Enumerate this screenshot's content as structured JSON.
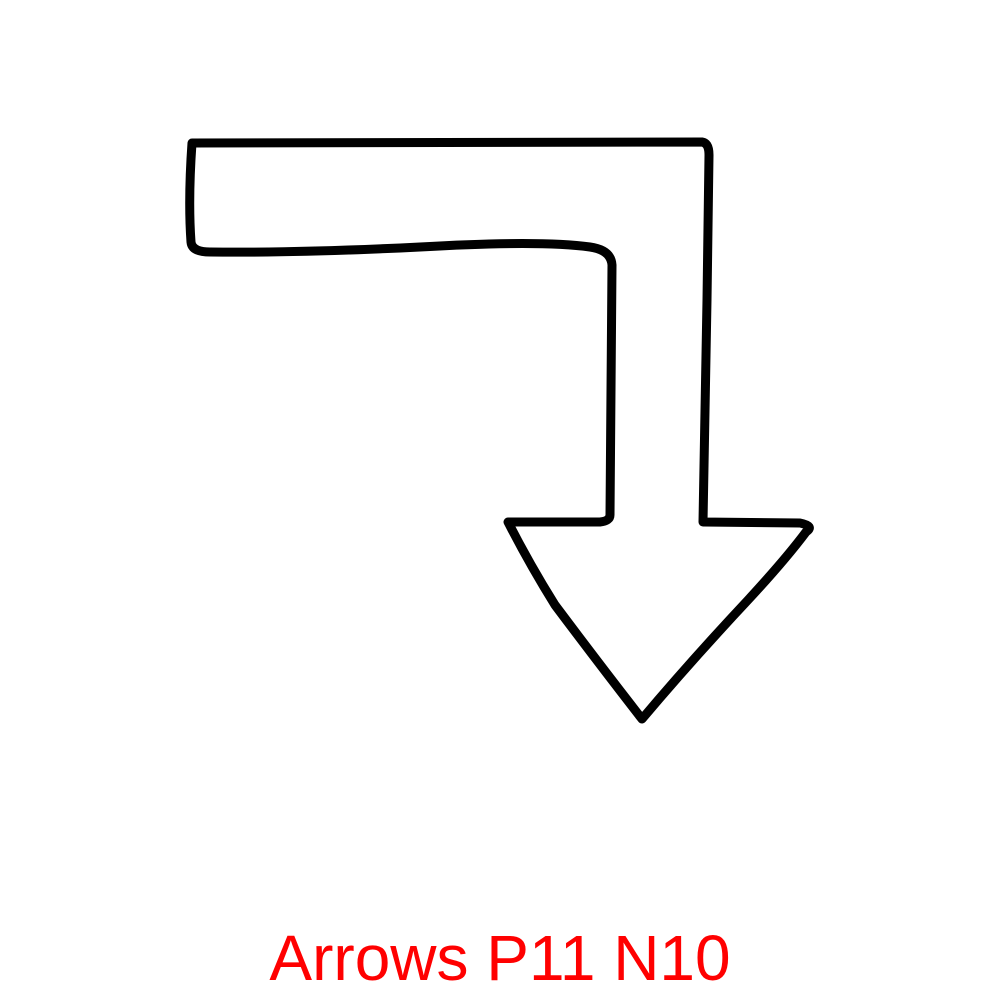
{
  "caption": {
    "text": "Arrows P11 N10",
    "color": "#ff0000"
  },
  "drawing": {
    "icon": "bent-arrow-right-then-down-icon",
    "stroke_color": "#000000",
    "fill_color": "#ffffff"
  }
}
